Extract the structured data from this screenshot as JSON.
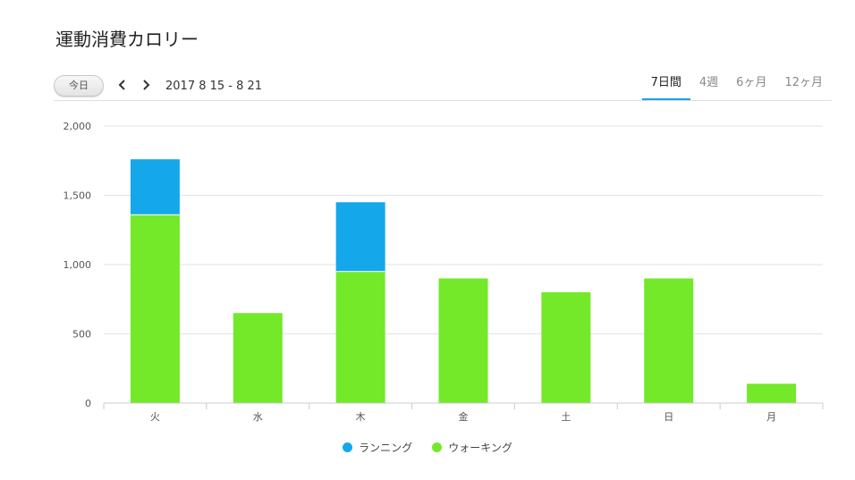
{
  "header": {
    "title": "運動消費カロリー"
  },
  "toolbar": {
    "today_label": "今日",
    "prev_icon": "chevron-left-icon",
    "next_icon": "chevron-right-icon",
    "date_range": "2017 8 15 - 8 21",
    "tabs": [
      {
        "label": "7日間",
        "active": true
      },
      {
        "label": "4週",
        "active": false
      },
      {
        "label": "6ヶ月",
        "active": false
      },
      {
        "label": "12ヶ月",
        "active": false
      }
    ]
  },
  "chart_data": {
    "type": "bar",
    "stacked": true,
    "title": "",
    "xlabel": "",
    "ylabel": "",
    "categories": [
      "火",
      "水",
      "木",
      "金",
      "土",
      "日",
      "月"
    ],
    "series": [
      {
        "name": "ウォーキング",
        "color": "#73e929",
        "values": [
          1360,
          650,
          950,
          900,
          800,
          900,
          140
        ]
      },
      {
        "name": "ランニング",
        "color": "#14a8ea",
        "values": [
          400,
          0,
          500,
          0,
          0,
          0,
          0
        ]
      }
    ],
    "ylim": [
      0,
      2000
    ],
    "yticks": [
      0,
      500,
      1000,
      1500,
      2000
    ],
    "ytick_labels": [
      "0",
      "500",
      "1,000",
      "1,500",
      "2,000"
    ],
    "grid": true,
    "legend_position": "bottom"
  },
  "legend": {
    "items": [
      {
        "name": "ランニング",
        "color": "#14a8ea"
      },
      {
        "name": "ウォーキング",
        "color": "#73e929"
      }
    ]
  }
}
